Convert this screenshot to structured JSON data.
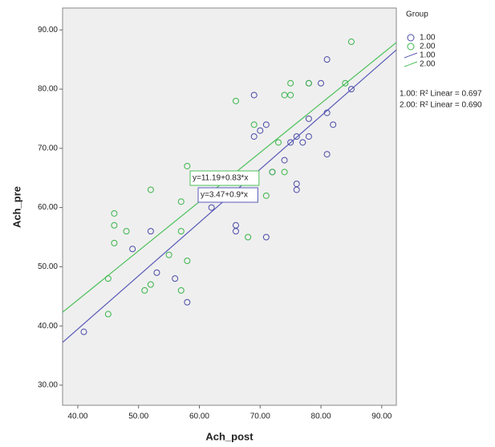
{
  "chart_data": {
    "type": "scatter",
    "x_label": "Ach_post",
    "y_label": "Ach_pre",
    "legend_title": "Group",
    "xlim": [
      37.5,
      92.4
    ],
    "ylim": [
      26.6,
      93.7
    ],
    "xticks": [
      {
        "value": 40,
        "label": "40.00"
      },
      {
        "value": 50,
        "label": "50.00"
      },
      {
        "value": 60,
        "label": "60.00"
      },
      {
        "value": 70,
        "label": "70.00"
      },
      {
        "value": 80,
        "label": "80.00"
      },
      {
        "value": 90,
        "label": "90.00"
      }
    ],
    "yticks": [
      {
        "value": 30,
        "label": "30.00"
      },
      {
        "value": 40,
        "label": "40.00"
      },
      {
        "value": 50,
        "label": "50.00"
      },
      {
        "value": 60,
        "label": "60.00"
      },
      {
        "value": 70,
        "label": "70.00"
      },
      {
        "value": 80,
        "label": "80.00"
      },
      {
        "value": 90,
        "label": "90.00"
      }
    ],
    "series": [
      {
        "name": "1.00",
        "color": "#4a4aa8",
        "x": [
          41,
          49,
          52,
          53,
          56,
          58,
          62,
          66,
          66,
          71,
          69,
          69,
          70,
          71,
          72,
          74,
          75,
          76,
          76,
          76,
          77,
          78,
          78,
          78,
          80,
          81,
          81,
          81,
          82,
          85
        ],
        "values": [
          39,
          53,
          56,
          49,
          48,
          44,
          60,
          57,
          56,
          55,
          72,
          79,
          73,
          74,
          66,
          68,
          71,
          72,
          64,
          63,
          71,
          75,
          72,
          81,
          81,
          85,
          76,
          69,
          74,
          80
        ]
      },
      {
        "name": "2.00",
        "color": "#3ab54a",
        "x": [
          45,
          45,
          46,
          46,
          46,
          48,
          51,
          52,
          52,
          55,
          57,
          57,
          57,
          58,
          58,
          66,
          68,
          69,
          71,
          72,
          73,
          74,
          74,
          75,
          75,
          78,
          84,
          85
        ],
        "values": [
          48,
          42,
          59,
          57,
          54,
          56,
          46,
          47,
          63,
          52,
          61,
          56,
          46,
          51,
          67,
          78,
          55,
          74,
          62,
          66,
          71,
          79,
          66,
          79,
          81,
          81,
          81,
          88
        ]
      }
    ],
    "fit_lines": [
      {
        "name": "1.00",
        "color": "#5a5ab8",
        "intercept": 3.47,
        "slope": 0.9,
        "label": "y=3.47+0.9*x",
        "r2_label": "1.00: R² Linear = 0.697"
      },
      {
        "name": "2.00",
        "color": "#4cc15a",
        "intercept": 11.19,
        "slope": 0.83,
        "label": "y=11.19+0.83*x",
        "r2_label": "2.00: R² Linear = 0.690"
      }
    ]
  }
}
